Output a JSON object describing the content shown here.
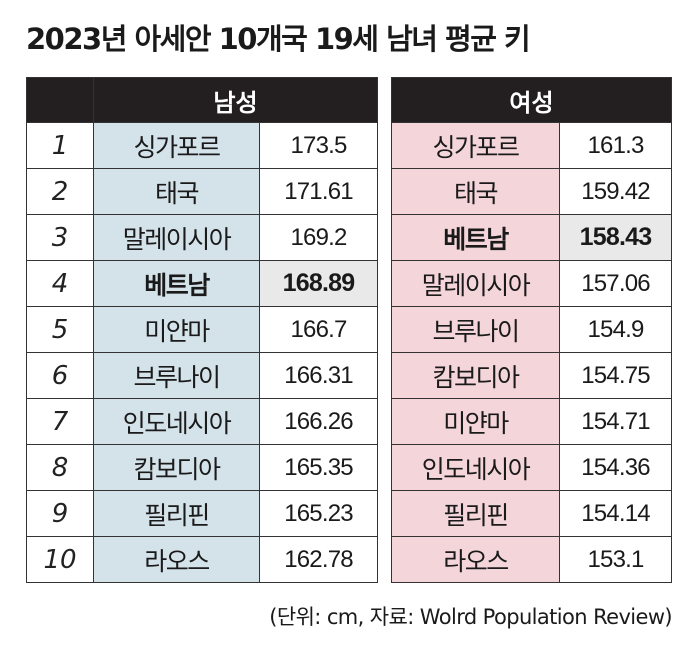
{
  "title": "2023년 아세안 10개국 19세 남녀 평균 키",
  "source": "(단위: cm, 자료: Wolrd Population Review)",
  "chart_data": {
    "type": "table",
    "title": "2023년 아세안 10개국 19세 남녀 평균 키",
    "unit": "cm",
    "highlight_country": "베트남",
    "colors": {
      "header_bg": "#231f20",
      "male_cell": "#d4e2ea",
      "female_cell": "#f3d5da",
      "highlight_value": "#e9e9e9"
    },
    "ranks": [
      "1",
      "2",
      "3",
      "4",
      "5",
      "6",
      "7",
      "8",
      "9",
      "10"
    ],
    "male": {
      "label": "남성",
      "rows": [
        {
          "country": "싱가포르",
          "value": "173.5"
        },
        {
          "country": "태국",
          "value": "171.61"
        },
        {
          "country": "말레이시아",
          "value": "169.2"
        },
        {
          "country": "베트남",
          "value": "168.89"
        },
        {
          "country": "미얀마",
          "value": "166.7"
        },
        {
          "country": "브루나이",
          "value": "166.31"
        },
        {
          "country": "인도네시아",
          "value": "166.26"
        },
        {
          "country": "캄보디아",
          "value": "165.35"
        },
        {
          "country": "필리핀",
          "value": "165.23"
        },
        {
          "country": "라오스",
          "value": "162.78"
        }
      ]
    },
    "female": {
      "label": "여성",
      "rows": [
        {
          "country": "싱가포르",
          "value": "161.3"
        },
        {
          "country": "태국",
          "value": "159.42"
        },
        {
          "country": "베트남",
          "value": "158.43"
        },
        {
          "country": "말레이시아",
          "value": "157.06"
        },
        {
          "country": "브루나이",
          "value": "154.9"
        },
        {
          "country": "캄보디아",
          "value": "154.75"
        },
        {
          "country": "미얀마",
          "value": "154.71"
        },
        {
          "country": "인도네시아",
          "value": "154.36"
        },
        {
          "country": "필리핀",
          "value": "154.14"
        },
        {
          "country": "라오스",
          "value": "153.1"
        }
      ]
    }
  }
}
